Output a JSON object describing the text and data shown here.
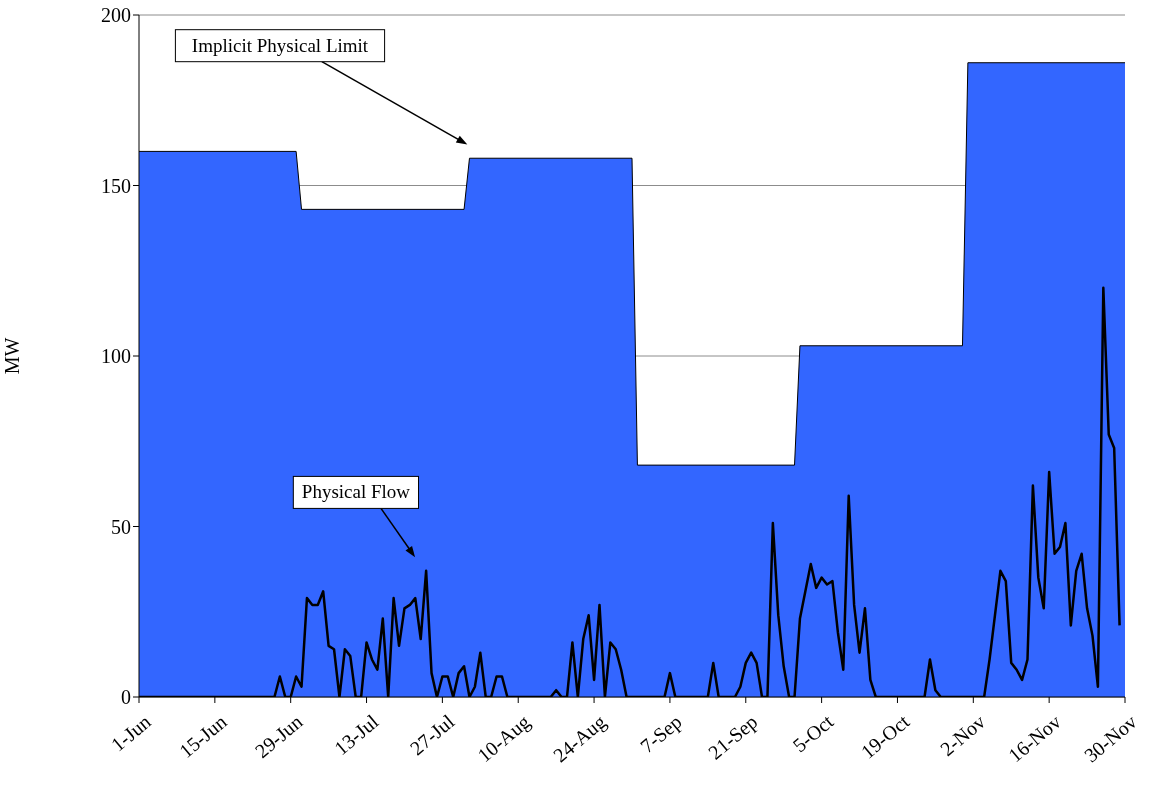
{
  "chart_data": {
    "type": "line",
    "ylabel": "MW",
    "xlim": [
      "--06-01",
      "--11-30"
    ],
    "xticks": [
      {
        "value": "--06-01",
        "label": "1-Jun"
      },
      {
        "value": "--06-15",
        "label": "15-Jun"
      },
      {
        "value": "--06-29",
        "label": "29-Jun"
      },
      {
        "value": "--07-13",
        "label": "13-Jul"
      },
      {
        "value": "--07-27",
        "label": "27-Jul"
      },
      {
        "value": "--08-10",
        "label": "10-Aug"
      },
      {
        "value": "--08-24",
        "label": "24-Aug"
      },
      {
        "value": "--09-07",
        "label": "7-Sep"
      },
      {
        "value": "--09-21",
        "label": "21-Sep"
      },
      {
        "value": "--10-05",
        "label": "5-Oct"
      },
      {
        "value": "--10-19",
        "label": "19-Oct"
      },
      {
        "value": "--11-02",
        "label": "2-Nov"
      },
      {
        "value": "--11-16",
        "label": "16-Nov"
      },
      {
        "value": "--11-30",
        "label": "30-Nov"
      }
    ],
    "ylim": [
      0,
      200
    ],
    "yticks": [
      0,
      50,
      100,
      150,
      200
    ],
    "grid": "y",
    "legend": false,
    "series": [
      {
        "type": "area",
        "color": "#3366ff",
        "x": [
          "--06-01",
          "--06-30",
          "--07-01",
          "--07-31",
          "--08-01",
          "--08-31",
          "--09-01",
          "--09-30",
          "--10-01",
          "--10-31",
          "--11-01",
          "--11-30"
        ],
        "values": [
          160,
          160,
          143,
          143,
          158,
          158,
          68,
          68,
          103,
          103,
          186,
          186
        ]
      },
      {
        "type": "line",
        "color": "#000000",
        "x": [
          "--06-01",
          "--06-26",
          "--06-27",
          "--06-28",
          "--06-29",
          "--06-30",
          "--07-01",
          "--07-02",
          "--07-03",
          "--07-04",
          "--07-05",
          "--07-06",
          "--07-07",
          "--07-08",
          "--07-09",
          "--07-10",
          "--07-11",
          "--07-12",
          "--07-13",
          "--07-14",
          "--07-15",
          "--07-16",
          "--07-17",
          "--07-18",
          "--07-19",
          "--07-20",
          "--07-21",
          "--07-22",
          "--07-23",
          "--07-24",
          "--07-25",
          "--07-26",
          "--07-27",
          "--07-28",
          "--07-29",
          "--07-30",
          "--07-31",
          "--08-01",
          "--08-02",
          "--08-03",
          "--08-04",
          "--08-05",
          "--08-06",
          "--08-07",
          "--08-08",
          "--08-16",
          "--08-17",
          "--08-18",
          "--08-19",
          "--08-20",
          "--08-21",
          "--08-22",
          "--08-23",
          "--08-24",
          "--08-25",
          "--08-26",
          "--08-27",
          "--08-28",
          "--08-29",
          "--08-30",
          "--09-06",
          "--09-07",
          "--09-08",
          "--09-14",
          "--09-15",
          "--09-16",
          "--09-19",
          "--09-20",
          "--09-21",
          "--09-22",
          "--09-23",
          "--09-24",
          "--09-25",
          "--09-26",
          "--09-27",
          "--09-28",
          "--09-29",
          "--09-30",
          "--10-01",
          "--10-02",
          "--10-03",
          "--10-04",
          "--10-05",
          "--10-06",
          "--10-07",
          "--10-08",
          "--10-09",
          "--10-10",
          "--10-11",
          "--10-12",
          "--10-13",
          "--10-14",
          "--10-15",
          "--10-24",
          "--10-25",
          "--10-26",
          "--10-27",
          "--11-04",
          "--11-05",
          "--11-06",
          "--11-07",
          "--11-08",
          "--11-09",
          "--11-10",
          "--11-11",
          "--11-12",
          "--11-13",
          "--11-14",
          "--11-15",
          "--11-16",
          "--11-17",
          "--11-18",
          "--11-19",
          "--11-20",
          "--11-21",
          "--11-22",
          "--11-23",
          "--11-24",
          "--11-25",
          "--11-26",
          "--11-27",
          "--11-28",
          "--11-29"
        ],
        "values": [
          0,
          0,
          6,
          0,
          0,
          6,
          3,
          29,
          27,
          27,
          31,
          15,
          14,
          0,
          14,
          12,
          0,
          0,
          16,
          11,
          8,
          23,
          0,
          29,
          15,
          26,
          27,
          29,
          17,
          37,
          7,
          0,
          6,
          6,
          0,
          7,
          9,
          0,
          3,
          13,
          0,
          0,
          6,
          6,
          0,
          0,
          2,
          0,
          0,
          16,
          0,
          17,
          24,
          5,
          27,
          0,
          16,
          14,
          8,
          0,
          0,
          7,
          0,
          0,
          10,
          0,
          0,
          3,
          10,
          13,
          10,
          0,
          0,
          51,
          24,
          9,
          0,
          0,
          23,
          31,
          39,
          32,
          35,
          33,
          34,
          19,
          8,
          59,
          27,
          13,
          26,
          5,
          0,
          0,
          11,
          2,
          0,
          0,
          11,
          24,
          37,
          34,
          10,
          8,
          5,
          11,
          62,
          35,
          26,
          66,
          42,
          44,
          51,
          21,
          37,
          42,
          26,
          18,
          3,
          120,
          77,
          73,
          21
        ]
      }
    ],
    "annotations": [
      "Implicit Physical Limit",
      "Physical Flow"
    ]
  }
}
